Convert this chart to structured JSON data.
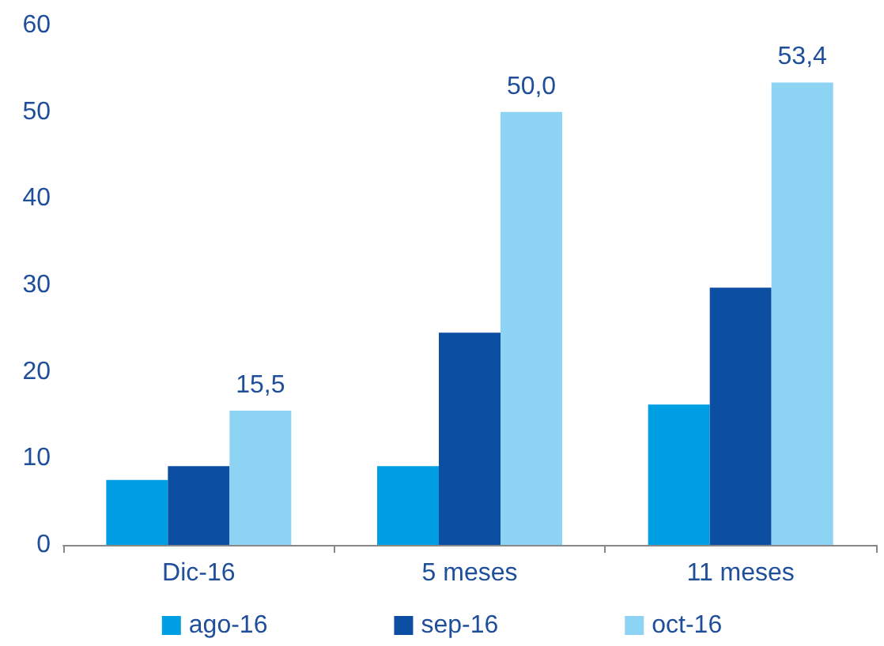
{
  "chart_data": {
    "type": "bar",
    "categories": [
      "Dic-16",
      "5 meses",
      "11 meses"
    ],
    "series": [
      {
        "name": "ago-16",
        "color": "#009fe3",
        "values": [
          7.5,
          9.1,
          16.2
        ]
      },
      {
        "name": "sep-16",
        "color": "#0b4ea2",
        "values": [
          9.1,
          24.5,
          29.7
        ]
      },
      {
        "name": "oct-16",
        "color": "#8dd3f3",
        "values": [
          15.5,
          50.0,
          53.4
        ],
        "value_labels": [
          "15,5",
          "50,0",
          "53,4"
        ]
      }
    ],
    "ylim": [
      0,
      60
    ],
    "yticks": [
      0,
      10,
      20,
      30,
      40,
      50,
      60
    ],
    "grid": false,
    "legend": "bottom"
  }
}
